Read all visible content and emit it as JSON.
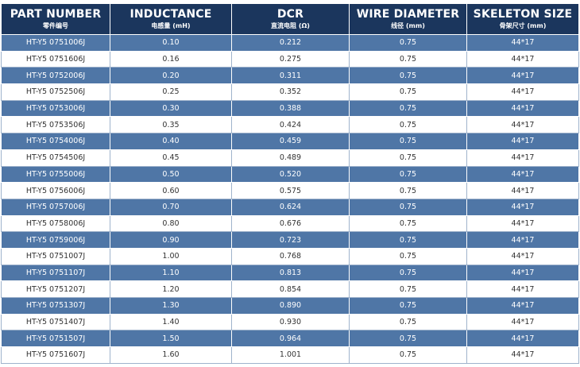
{
  "colors": {
    "header_bg": "#1b365d",
    "stripe_bg": "#4f76a6",
    "plain_bg": "#ffffff"
  },
  "columns": [
    {
      "title": "PART NUMBER",
      "subtitle": "零件编号"
    },
    {
      "title": "INDUCTANCE",
      "subtitle": "电感量 (mH)"
    },
    {
      "title": "DCR",
      "subtitle": "直流电阻 (Ω)"
    },
    {
      "title": "WIRE DIAMETER",
      "subtitle": "线径 (mm)"
    },
    {
      "title": "SKELETON SIZE",
      "subtitle": "骨架尺寸 (mm)"
    }
  ],
  "rows": [
    [
      "HT-Y5 0751006J",
      "0.10",
      "0.212",
      "0.75",
      "44*17"
    ],
    [
      "HT-Y5 0751606J",
      "0.16",
      "0.275",
      "0.75",
      "44*17"
    ],
    [
      "HT-Y5 0752006J",
      "0.20",
      "0.311",
      "0.75",
      "44*17"
    ],
    [
      "HT-Y5 0752506J",
      "0.25",
      "0.352",
      "0.75",
      "44*17"
    ],
    [
      "HT-Y5 0753006J",
      "0.30",
      "0.388",
      "0.75",
      "44*17"
    ],
    [
      "HT-Y5 0753506J",
      "0.35",
      "0.424",
      "0.75",
      "44*17"
    ],
    [
      "HT-Y5 0754006J",
      "0.40",
      "0.459",
      "0.75",
      "44*17"
    ],
    [
      "HT-Y5 0754506J",
      "0.45",
      "0.489",
      "0.75",
      "44*17"
    ],
    [
      "HT-Y5 0755006J",
      "0.50",
      "0.520",
      "0.75",
      "44*17"
    ],
    [
      "HT-Y5 0756006J",
      "0.60",
      "0.575",
      "0.75",
      "44*17"
    ],
    [
      "HT-Y5 0757006J",
      "0.70",
      "0.624",
      "0.75",
      "44*17"
    ],
    [
      "HT-Y5 0758006J",
      "0.80",
      "0.676",
      "0.75",
      "44*17"
    ],
    [
      "HT-Y5 0759006J",
      "0.90",
      "0.723",
      "0.75",
      "44*17"
    ],
    [
      "HT-Y5 0751007J",
      "1.00",
      "0.768",
      "0.75",
      "44*17"
    ],
    [
      "HT-Y5 0751107J",
      "1.10",
      "0.813",
      "0.75",
      "44*17"
    ],
    [
      "HT-Y5 0751207J",
      "1.20",
      "0.854",
      "0.75",
      "44*17"
    ],
    [
      "HT-Y5 0751307J",
      "1.30",
      "0.890",
      "0.75",
      "44*17"
    ],
    [
      "HT-Y5 0751407J",
      "1.40",
      "0.930",
      "0.75",
      "44*17"
    ],
    [
      "HT-Y5 0751507J",
      "1.50",
      "0.964",
      "0.75",
      "44*17"
    ],
    [
      "HT-Y5 0751607J",
      "1.60",
      "1.001",
      "0.75",
      "44*17"
    ]
  ]
}
